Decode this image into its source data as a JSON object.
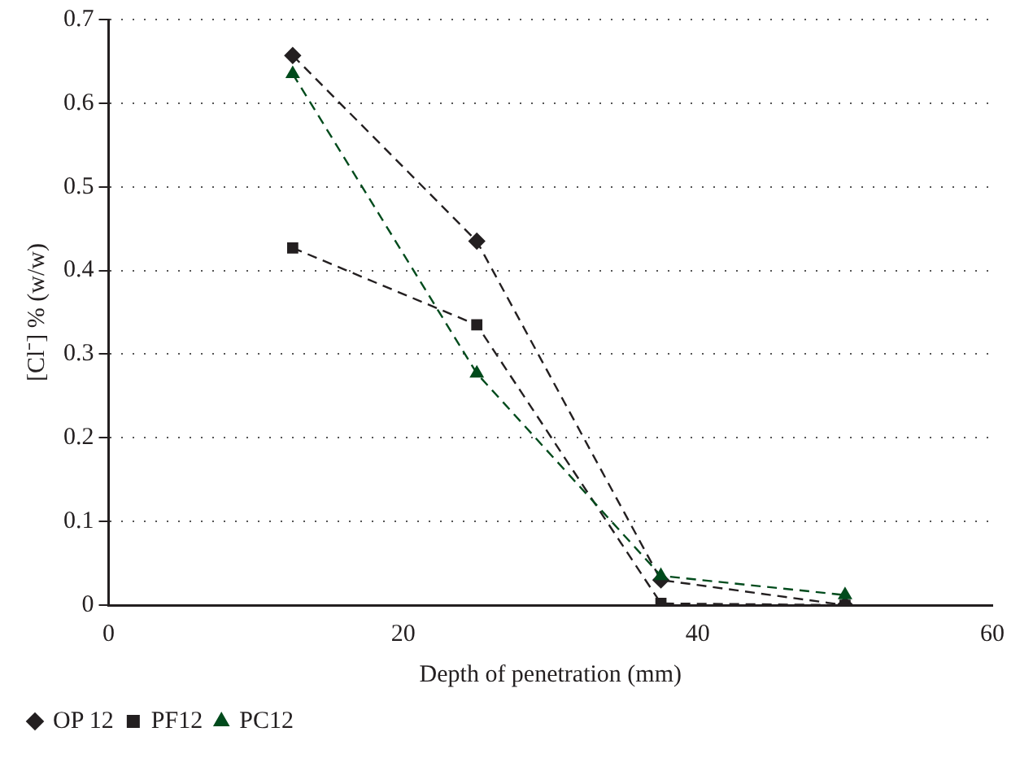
{
  "chart_data": {
    "type": "line",
    "xlabel": "Depth of penetration (mm)",
    "ylabel": "[Cl⁻] % (w/w)",
    "xlim": [
      0,
      60
    ],
    "xticks": [
      0,
      20,
      40,
      60
    ],
    "ylim": [
      0,
      0.7
    ],
    "yticks": [
      0,
      0.1,
      0.2,
      0.3,
      0.4,
      0.5,
      0.6,
      0.7
    ],
    "grid": "y",
    "legend": "bottom left",
    "line_style": "dashed",
    "series": [
      {
        "name": "OP 12",
        "color": "#231f20",
        "marker": "diamond",
        "x": [
          12.5,
          25,
          37.5,
          50
        ],
        "values": [
          0.657,
          0.435,
          0.03,
          0.0
        ]
      },
      {
        "name": "PF12",
        "color": "#231f20",
        "marker": "square",
        "x": [
          12.5,
          25,
          37.5,
          50
        ],
        "values": [
          0.427,
          0.335,
          0.002,
          0.0
        ]
      },
      {
        "name": "PC12",
        "color": "#004b1c",
        "marker": "triangle",
        "x": [
          12.5,
          25,
          37.5,
          50
        ],
        "values": [
          0.635,
          0.277,
          0.035,
          0.012
        ]
      }
    ]
  }
}
